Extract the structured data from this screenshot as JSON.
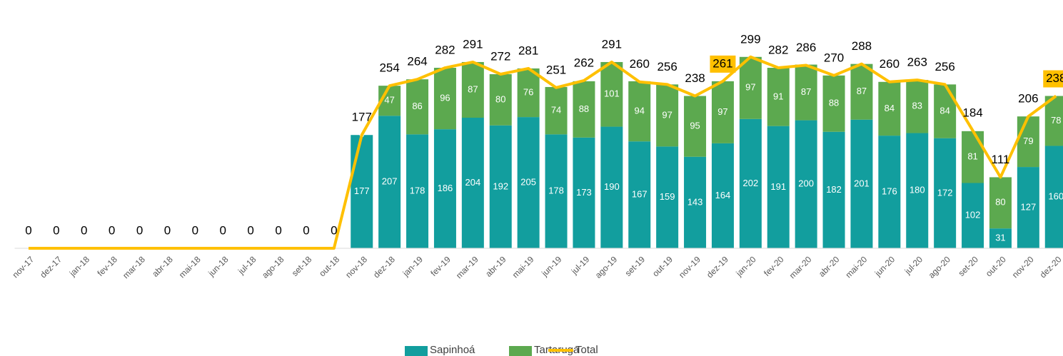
{
  "chart_data": {
    "type": "stacked_bar_line",
    "categories": [
      "nov-17",
      "dez-17",
      "jan-18",
      "fev-18",
      "mar-18",
      "abr-18",
      "mai-18",
      "jun-18",
      "jul-18",
      "ago-18",
      "set-18",
      "out-18",
      "nov-18",
      "dez-18",
      "jan-19",
      "fev-19",
      "mar-19",
      "abr-19",
      "mai-19",
      "jun-19",
      "jul-19",
      "ago-19",
      "set-19",
      "out-19",
      "nov-19",
      "dez-19",
      "jan-20",
      "fev-20",
      "mar-20",
      "abr-20",
      "mai-20",
      "jun-20",
      "jul-20",
      "ago-20",
      "set-20",
      "out-20",
      "nov-20",
      "dez-20"
    ],
    "series": [
      {
        "name": "Sapinhoá",
        "color": "#129e9e",
        "values": [
          0,
          0,
          0,
          0,
          0,
          0,
          0,
          0,
          0,
          0,
          0,
          0,
          177,
          207,
          178,
          186,
          204,
          192,
          205,
          178,
          173,
          190,
          167,
          159,
          143,
          164,
          202,
          191,
          200,
          182,
          201,
          176,
          180,
          172,
          102,
          31,
          127,
          160
        ]
      },
      {
        "name": "Tartaruga",
        "color": "#5ca94f",
        "values": [
          0,
          0,
          0,
          0,
          0,
          0,
          0,
          0,
          0,
          0,
          0,
          0,
          0,
          47,
          86,
          96,
          87,
          80,
          76,
          74,
          88,
          101,
          94,
          97,
          95,
          97,
          97,
          91,
          87,
          88,
          87,
          84,
          83,
          84,
          81,
          80,
          79,
          78
        ]
      },
      {
        "name": "Total",
        "color": "#ffc000",
        "type": "line",
        "values": [
          0,
          0,
          0,
          0,
          0,
          0,
          0,
          0,
          0,
          0,
          0,
          0,
          177,
          254,
          264,
          282,
          291,
          272,
          281,
          251,
          262,
          291,
          260,
          256,
          238,
          261,
          299,
          282,
          286,
          270,
          288,
          260,
          263,
          256,
          184,
          111,
          206,
          238
        ]
      }
    ],
    "highlighted": [
      "dez-19",
      "dez-20"
    ],
    "ylim": [
      0,
      340
    ]
  }
}
